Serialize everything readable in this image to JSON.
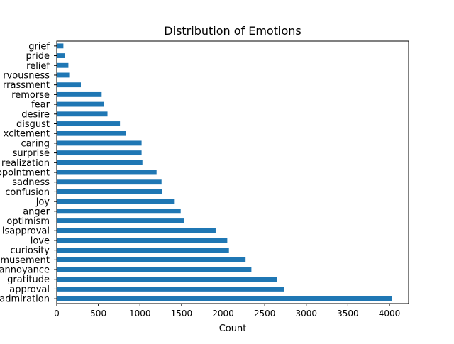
{
  "chart_data": {
    "type": "bar",
    "orientation": "horizontal",
    "title": "Distribution of Emotions",
    "xlabel": "Count",
    "ylabel": "",
    "xlim": [
      0,
      4230
    ],
    "xticks": [
      0,
      500,
      1000,
      1500,
      2000,
      2500,
      3000,
      3500,
      4000
    ],
    "xtick_labels": [
      "0",
      "500",
      "1000",
      "1500",
      "2000",
      "2500",
      "3000",
      "3500",
      "4000"
    ],
    "grid": false,
    "legend": "none",
    "bar_color": "#1f77b4",
    "categories": [
      "admiration",
      "approval",
      "gratitude",
      "annoyance",
      "amusement",
      "curiosity",
      "love",
      "disapproval",
      "optimism",
      "anger",
      "joy",
      "confusion",
      "sadness",
      "disappointment",
      "realization",
      "surprise",
      "caring",
      "excitement",
      "disgust",
      "desire",
      "fear",
      "remorse",
      "embarrassment",
      "nervousness",
      "relief",
      "pride",
      "grief"
    ],
    "category_labels": [
      "admiration",
      "approval",
      "gratitude",
      "annoyance",
      "amusement",
      "curiosity",
      "love",
      "isapproval",
      "optimism",
      "anger",
      "joy",
      "confusion",
      "sadness",
      "ppointment",
      "realization",
      "surprise",
      "caring",
      "xcitement",
      "disgust",
      "desire",
      "fear",
      "remorse",
      "rrassment",
      "rvousness",
      "relief",
      "pride",
      "grief"
    ],
    "values": [
      4030,
      2730,
      2650,
      2340,
      2270,
      2070,
      2050,
      1910,
      1530,
      1490,
      1410,
      1270,
      1260,
      1200,
      1030,
      1020,
      1020,
      830,
      760,
      610,
      570,
      540,
      290,
      150,
      140,
      100,
      80
    ]
  }
}
